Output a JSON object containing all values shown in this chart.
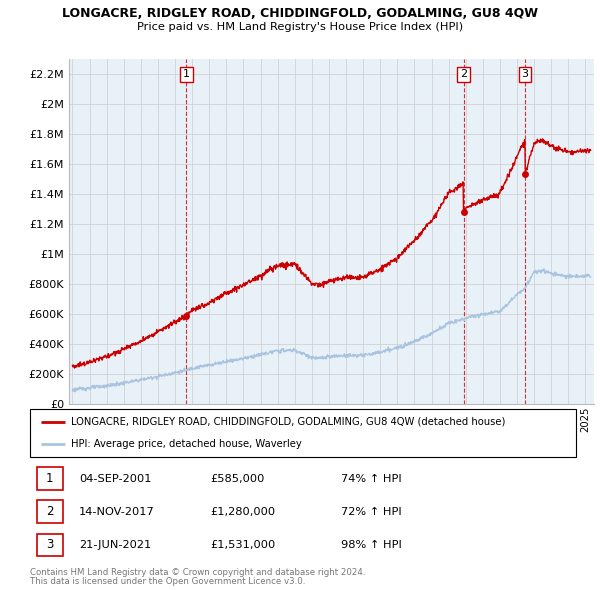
{
  "title": "LONGACRE, RIDGLEY ROAD, CHIDDINGFOLD, GODALMING, GU8 4QW",
  "subtitle": "Price paid vs. HM Land Registry's House Price Index (HPI)",
  "ylim": [
    0,
    2300000
  ],
  "yticks": [
    0,
    200000,
    400000,
    600000,
    800000,
    1000000,
    1200000,
    1400000,
    1600000,
    1800000,
    2000000,
    2200000
  ],
  "ytick_labels": [
    "£0",
    "£200K",
    "£400K",
    "£600K",
    "£800K",
    "£1M",
    "£1.2M",
    "£1.4M",
    "£1.6M",
    "£1.8M",
    "£2M",
    "£2.2M"
  ],
  "xlim_start": 1994.8,
  "xlim_end": 2025.5,
  "sales": [
    {
      "date": 2001.67,
      "price": 585000,
      "label": "1"
    },
    {
      "date": 2017.87,
      "price": 1280000,
      "label": "2"
    },
    {
      "date": 2021.47,
      "price": 1531000,
      "label": "3"
    }
  ],
  "hpi_color": "#aac4e0",
  "sale_color": "#cc0000",
  "bg_color": "#e8f0f8",
  "legend_label_red": "LONGACRE, RIDGLEY ROAD, CHIDDINGFOLD, GODALMING, GU8 4QW (detached house)",
  "legend_label_blue": "HPI: Average price, detached house, Waverley",
  "table_rows": [
    {
      "num": "1",
      "date": "04-SEP-2001",
      "price": "£585,000",
      "hpi": "74% ↑ HPI"
    },
    {
      "num": "2",
      "date": "14-NOV-2017",
      "price": "£1,280,000",
      "hpi": "72% ↑ HPI"
    },
    {
      "num": "3",
      "date": "21-JUN-2021",
      "price": "£1,531,000",
      "hpi": "98% ↑ HPI"
    }
  ],
  "footnote1": "Contains HM Land Registry data © Crown copyright and database right 2024.",
  "footnote2": "This data is licensed under the Open Government Licence v3.0."
}
